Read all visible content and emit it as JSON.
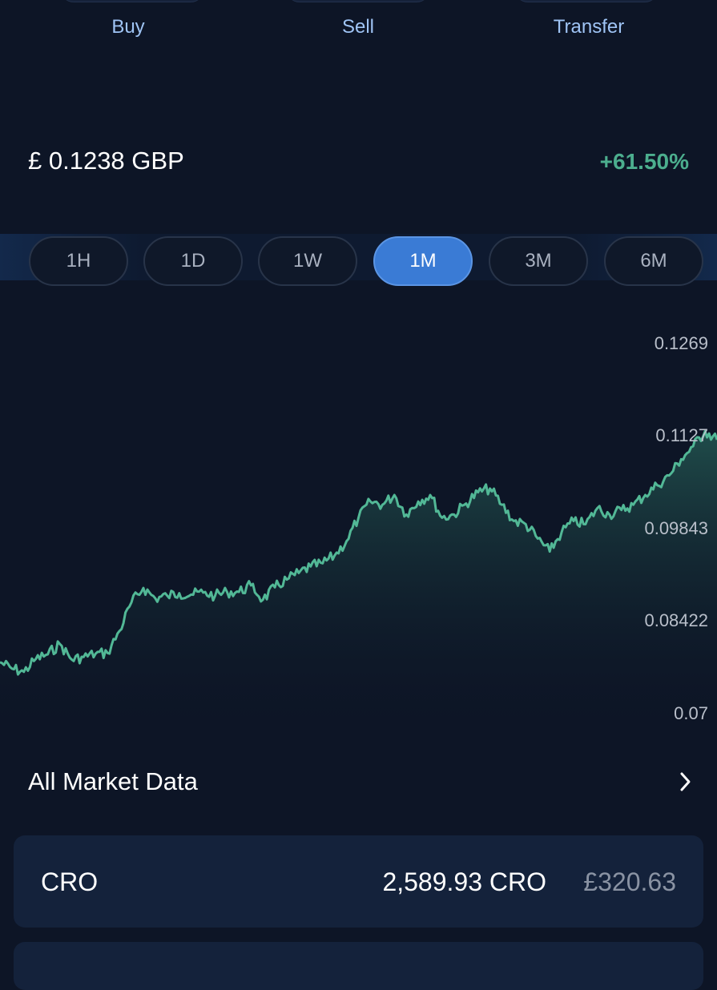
{
  "actions": {
    "buy": "Buy",
    "sell": "Sell",
    "transfer": "Transfer"
  },
  "price": {
    "value": "£ 0.1238 GBP",
    "change": "+61.50%"
  },
  "ranges": [
    "1H",
    "1D",
    "1W",
    "1M",
    "3M",
    "6M"
  ],
  "selected_range": "1M",
  "chart_data": {
    "type": "area",
    "y_ticks": [
      "0.1269",
      "0.1127",
      "0.09843",
      "0.08422",
      "0.07"
    ],
    "ylim": [
      0.07,
      0.1269
    ],
    "line_color": "#52b896",
    "x": [
      0,
      1,
      2,
      3,
      4,
      5,
      6,
      7,
      8,
      9,
      10,
      11,
      12,
      13,
      14,
      15,
      16,
      17,
      18,
      19,
      20,
      21,
      22,
      23,
      24,
      25,
      26,
      27,
      28,
      29,
      30,
      31,
      32,
      33,
      34,
      35,
      36,
      37,
      38,
      39,
      40,
      41,
      42,
      43,
      44,
      45,
      46,
      47,
      48,
      49,
      50,
      51,
      52,
      53,
      54,
      55,
      56,
      57,
      58,
      59,
      60
    ],
    "values": [
      0.0778,
      0.0768,
      0.0763,
      0.0783,
      0.079,
      0.0806,
      0.0782,
      0.0786,
      0.0791,
      0.0792,
      0.0826,
      0.087,
      0.0892,
      0.0876,
      0.088,
      0.0884,
      0.0882,
      0.0885,
      0.088,
      0.0886,
      0.0886,
      0.0896,
      0.0874,
      0.0893,
      0.0905,
      0.0915,
      0.0925,
      0.093,
      0.0942,
      0.0964,
      0.1,
      0.1025,
      0.102,
      0.1035,
      0.1005,
      0.1025,
      0.1035,
      0.1,
      0.1005,
      0.1022,
      0.1039,
      0.1045,
      0.102,
      0.0995,
      0.099,
      0.0968,
      0.0948,
      0.0978,
      0.0995,
      0.099,
      0.1015,
      0.1005,
      0.1012,
      0.102,
      0.1035,
      0.105,
      0.1065,
      0.109,
      0.111,
      0.1133,
      0.112
    ]
  },
  "market": {
    "label": "All Market Data"
  },
  "holding": {
    "symbol": "CRO",
    "amount": "2,589.93 CRO",
    "value": "£320.63"
  }
}
